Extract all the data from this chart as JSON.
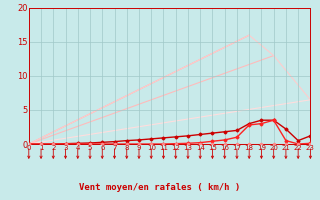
{
  "xlabel": "Vent moyen/en rafales ( km/h )",
  "xlim": [
    0,
    23
  ],
  "ylim": [
    0,
    20
  ],
  "xticks": [
    0,
    1,
    2,
    3,
    4,
    5,
    6,
    7,
    8,
    9,
    10,
    11,
    12,
    13,
    14,
    15,
    16,
    17,
    18,
    19,
    20,
    21,
    22,
    23
  ],
  "yticks": [
    0,
    5,
    10,
    15,
    20
  ],
  "background_color": "#c8eaea",
  "grid_color": "#a0c8c8",
  "font_color": "#cc0000",
  "light_lines": [
    {
      "x": [
        0,
        18
      ],
      "y": [
        0,
        16
      ],
      "color": "#ffaaaa",
      "lw": 0.8
    },
    {
      "x": [
        0,
        20
      ],
      "y": [
        0,
        13
      ],
      "color": "#ffbbbb",
      "lw": 0.8
    },
    {
      "x": [
        0,
        18,
        20,
        23
      ],
      "y": [
        0,
        16,
        13,
        6.5
      ],
      "color": "#ffcccc",
      "lw": 0.8
    },
    {
      "x": [
        0,
        23
      ],
      "y": [
        0,
        6.5
      ],
      "color": "#ffdddd",
      "lw": 0.8
    }
  ],
  "data_lines": [
    {
      "x": [
        0,
        1,
        2,
        3,
        4,
        5,
        6,
        7,
        8,
        9,
        10,
        11,
        12,
        13,
        14,
        15,
        16,
        17,
        18,
        19,
        20,
        21,
        22,
        23
      ],
      "y": [
        0,
        0,
        0,
        0.05,
        0.1,
        0.15,
        0.25,
        0.35,
        0.5,
        0.6,
        0.75,
        0.9,
        1.05,
        1.2,
        1.4,
        1.6,
        1.8,
        2.0,
        3.0,
        3.5,
        3.5,
        2.2,
        0.5,
        1.2
      ],
      "color": "#cc0000",
      "lw": 1.0,
      "marker": "D",
      "ms": 1.5
    },
    {
      "x": [
        0,
        1,
        2,
        3,
        4,
        5,
        6,
        7,
        8,
        9,
        10,
        11,
        12,
        13,
        14,
        15,
        16,
        17,
        18,
        19,
        20,
        21,
        22,
        23
      ],
      "y": [
        0,
        0,
        0,
        0,
        0,
        0,
        0,
        0,
        0,
        0,
        0,
        0,
        0.05,
        0.1,
        0.2,
        0.4,
        0.6,
        1.0,
        2.8,
        3.0,
        3.5,
        0.5,
        0,
        0.1
      ],
      "color": "#ff2222",
      "lw": 1.0,
      "marker": "D",
      "ms": 1.5
    },
    {
      "x": [
        0,
        1,
        2,
        3,
        4,
        5,
        6,
        7,
        8,
        9,
        10,
        11,
        12,
        13,
        14,
        15,
        16,
        17,
        18,
        19,
        20,
        21,
        22,
        23
      ],
      "y": [
        0,
        0,
        0,
        0,
        0,
        0,
        0,
        0,
        0,
        0,
        0,
        0,
        0,
        0,
        0,
        0,
        0,
        0,
        0,
        0,
        0,
        0,
        0,
        0
      ],
      "color": "#ff8888",
      "lw": 0.8,
      "marker": "o",
      "ms": 1.5
    }
  ]
}
